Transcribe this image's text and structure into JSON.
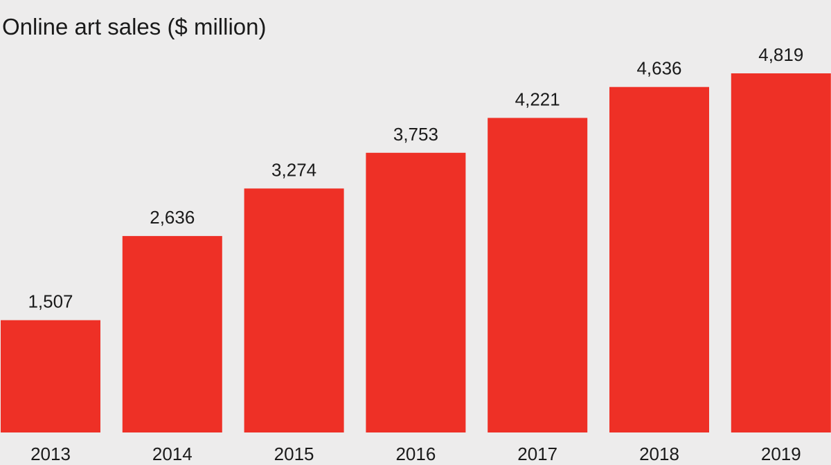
{
  "chart_data": {
    "type": "bar",
    "title": "Online art sales ($ million)",
    "xlabel": "",
    "ylabel": "",
    "categories": [
      "2013",
      "2014",
      "2015",
      "2016",
      "2017",
      "2018",
      "2019"
    ],
    "values": [
      1507,
      2636,
      3274,
      3753,
      4221,
      4636,
      4819
    ],
    "value_labels": [
      "1,507",
      "2,636",
      "3,274",
      "3,753",
      "4,221",
      "4,636",
      "4,819"
    ],
    "ylim": [
      0,
      5000
    ],
    "grid": false,
    "legend": "none",
    "bar_color": "#ee3026",
    "background_color": "#edecec"
  }
}
